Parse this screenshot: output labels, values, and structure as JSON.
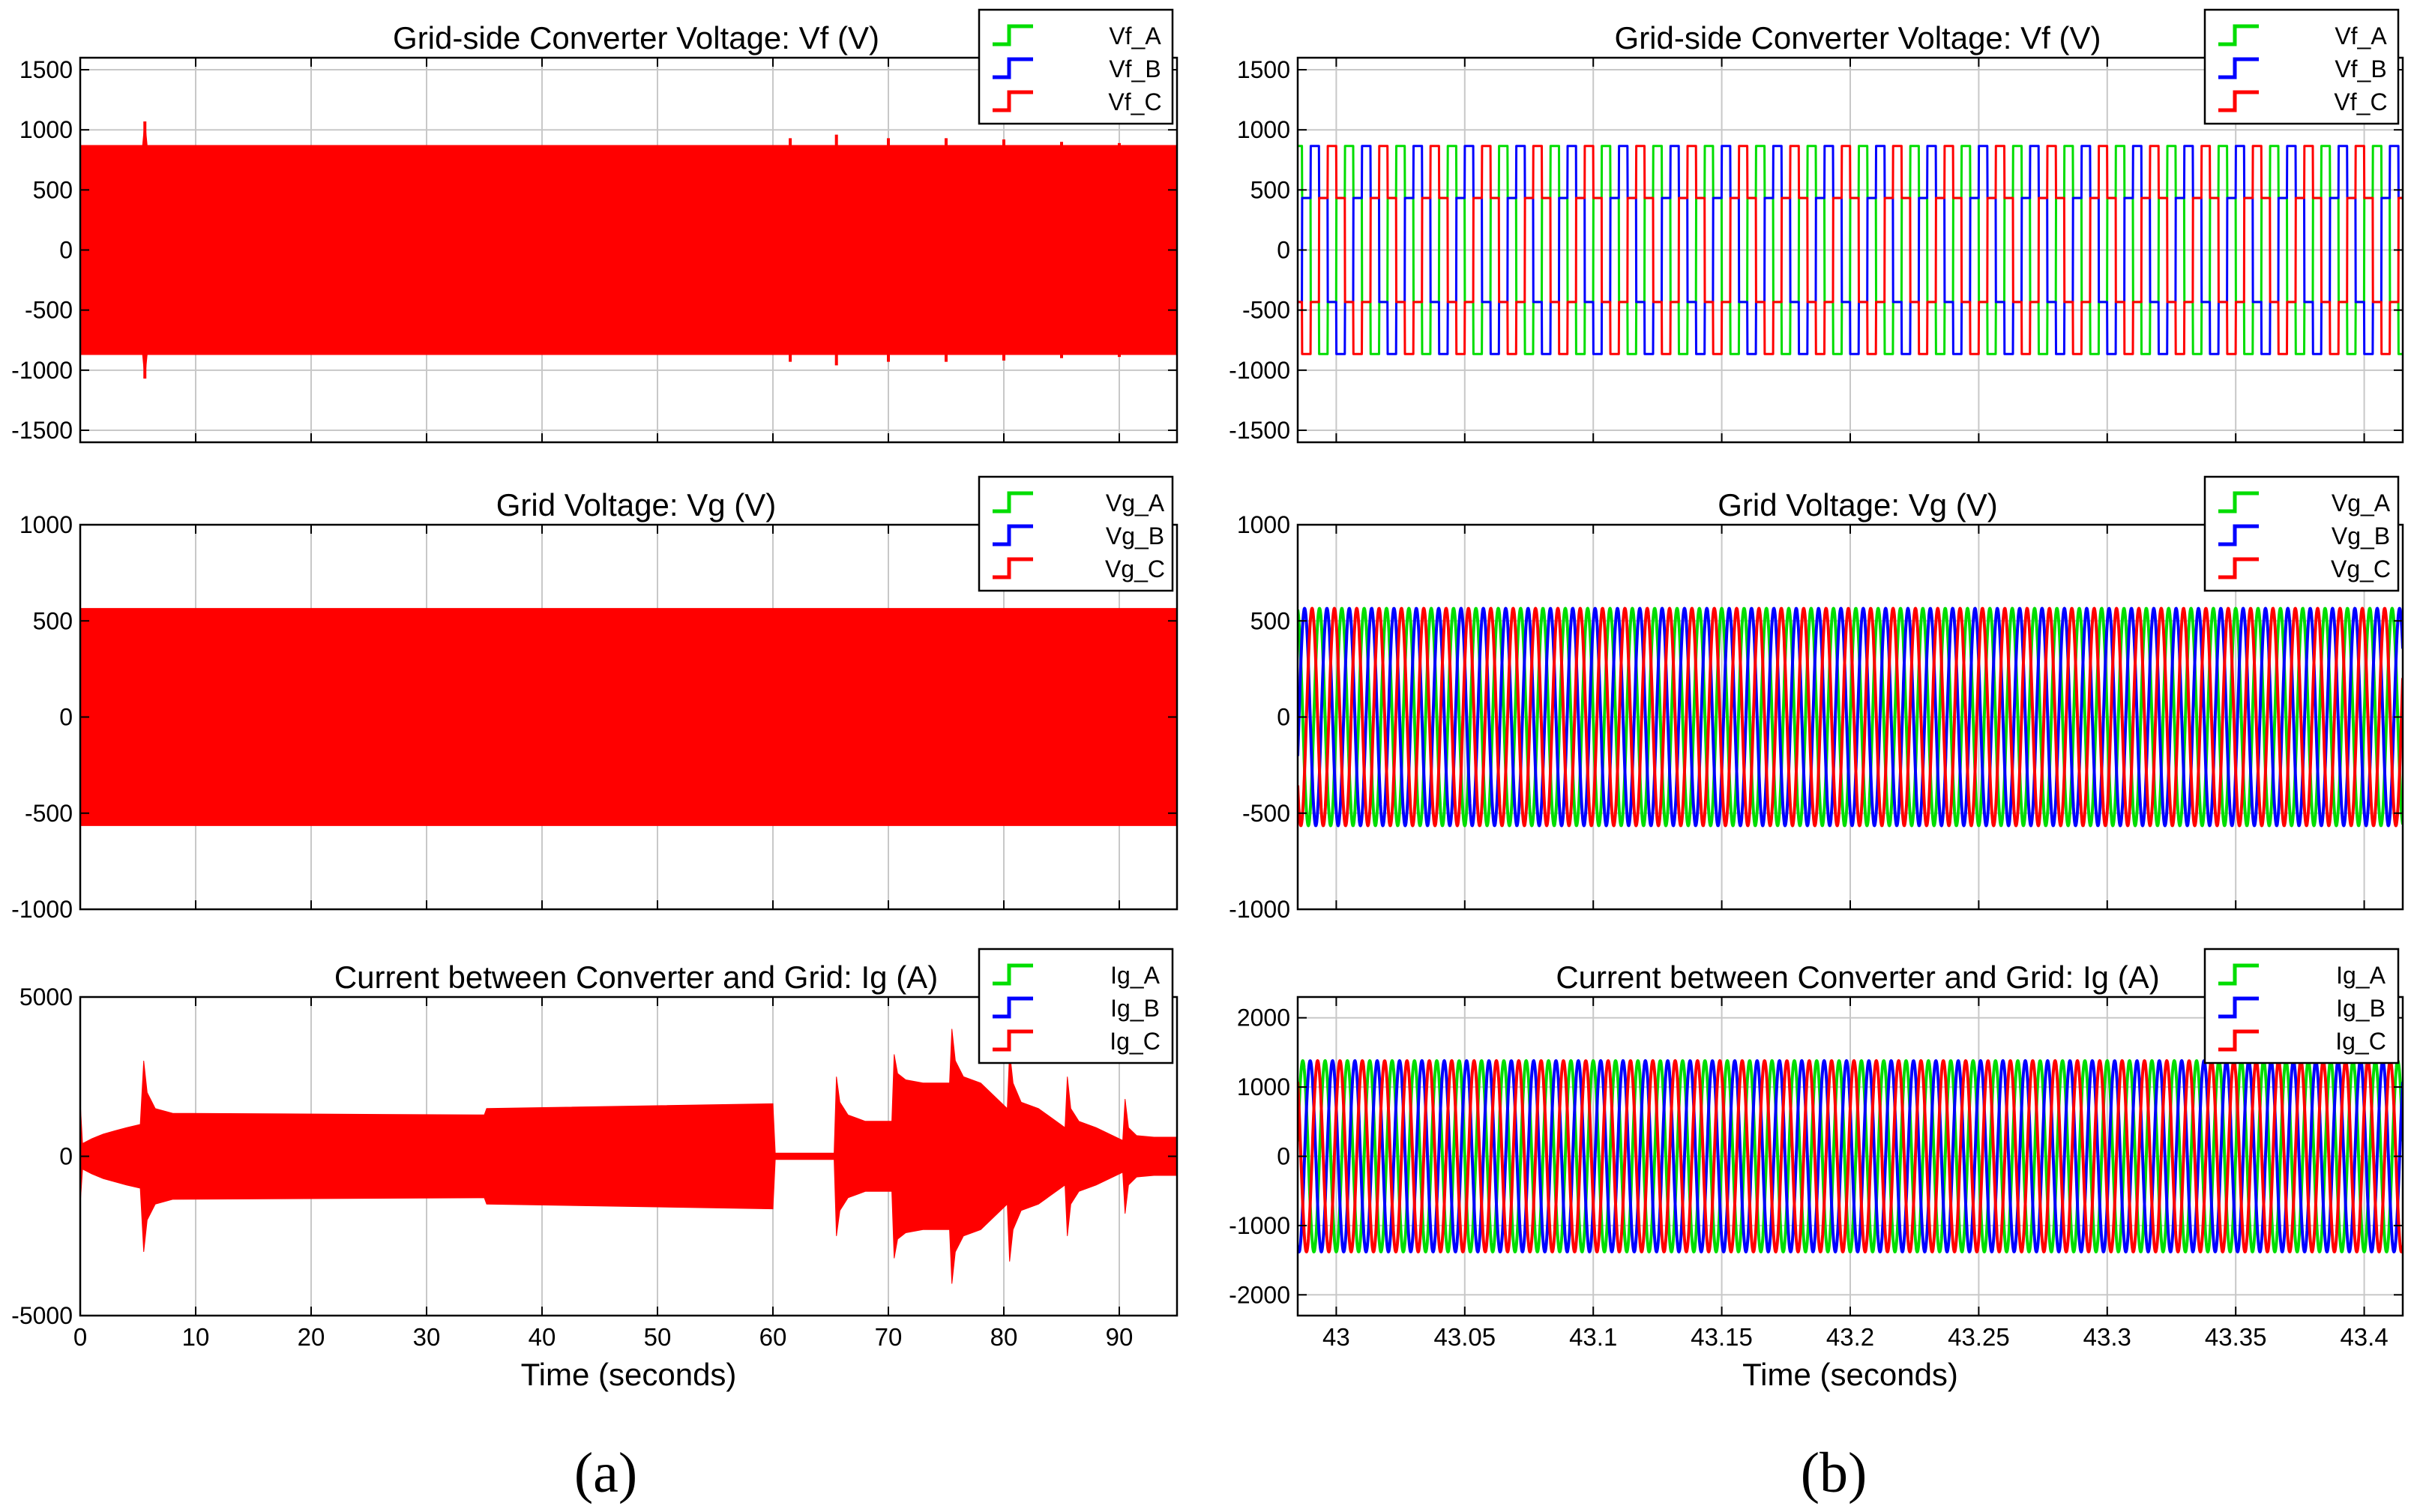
{
  "figure": {
    "panel_labels": [
      "(a)",
      "(b)"
    ],
    "colors": {
      "phase_A": "#00dd00",
      "phase_B": "#0000ff",
      "phase_C": "#ff0000",
      "grid": "#c8c8c8"
    }
  },
  "chart_data": [
    {
      "id": "a1",
      "type": "line",
      "panel": "(a)",
      "row": 0,
      "title": "Grid-side Converter Voltage: Vf (V)",
      "xlabel": "",
      "ylabel": "",
      "xlim": [
        0,
        95
      ],
      "ylim": [
        -1600,
        1600
      ],
      "xticks": [
        0,
        10,
        20,
        30,
        40,
        50,
        60,
        70,
        80,
        90
      ],
      "xtick_labels": [],
      "yticks": [
        -1500,
        -1000,
        -500,
        0,
        500,
        1000,
        1500
      ],
      "ytick_labels": [
        "-1500",
        "-1000",
        "-500",
        "0",
        "500",
        "1000",
        "1500"
      ],
      "legend": [
        "Vf_A",
        "Vf_B",
        "Vf_C"
      ],
      "legend_position": "top-right",
      "signal": "envelope",
      "envelope": {
        "t": [
          0,
          5.4,
          5.6,
          5.8,
          95
        ],
        "upper": [
          870,
          870,
          1070,
          870,
          870
        ],
        "lower": [
          -870,
          -870,
          -1070,
          -870,
          -870
        ]
      },
      "spikes": [
        [
          5.6,
          1070
        ],
        [
          61.5,
          930
        ],
        [
          65.5,
          960
        ],
        [
          70,
          930
        ],
        [
          75,
          930
        ],
        [
          80,
          920
        ],
        [
          85,
          900
        ],
        [
          90,
          890
        ]
      ]
    },
    {
      "id": "a2",
      "type": "line",
      "panel": "(a)",
      "row": 1,
      "title": "Grid Voltage: Vg (V)",
      "xlabel": "",
      "ylabel": "",
      "xlim": [
        0,
        95
      ],
      "ylim": [
        -1000,
        1000
      ],
      "xticks": [
        0,
        10,
        20,
        30,
        40,
        50,
        60,
        70,
        80,
        90
      ],
      "xtick_labels": [],
      "yticks": [
        -1000,
        -500,
        0,
        500,
        1000
      ],
      "ytick_labels": [
        "-1000",
        "-500",
        "0",
        "500",
        "1000"
      ],
      "legend": [
        "Vg_A",
        "Vg_B",
        "Vg_C"
      ],
      "legend_position": "top-right",
      "signal": "envelope",
      "envelope": {
        "t": [
          0,
          95
        ],
        "upper": [
          565,
          565
        ],
        "lower": [
          -565,
          -565
        ]
      },
      "spikes": []
    },
    {
      "id": "a3",
      "type": "line",
      "panel": "(a)",
      "row": 2,
      "title": "Current between Converter and Grid: Ig (A)",
      "xlabel": "Time (seconds)",
      "ylabel": "",
      "xlim": [
        0,
        95
      ],
      "ylim": [
        -5000,
        5000
      ],
      "xticks": [
        0,
        10,
        20,
        30,
        40,
        50,
        60,
        70,
        80,
        90
      ],
      "xtick_labels": [
        "0",
        "10",
        "20",
        "30",
        "40",
        "50",
        "60",
        "70",
        "80",
        "90"
      ],
      "yticks": [
        -5000,
        0,
        5000
      ],
      "ytick_labels": [
        "-5000",
        "0",
        "5000"
      ],
      "legend": [
        "Ig_A",
        "Ig_B",
        "Ig_C"
      ],
      "legend_position": "top-right",
      "signal": "envelope",
      "envelope": {
        "t": [
          0,
          0.2,
          1,
          2,
          3,
          4,
          5.2,
          5.5,
          5.8,
          6.5,
          8,
          35,
          35.2,
          60,
          60.2,
          65.3,
          65.5,
          65.8,
          66.5,
          68,
          70.3,
          70.5,
          70.8,
          71.5,
          73,
          75.3,
          75.5,
          75.8,
          76.5,
          78,
          80.3,
          80.5,
          80.8,
          81.5,
          83,
          85.3,
          85.5,
          85.8,
          86.5,
          88,
          90.3,
          90.5,
          90.8,
          91.5,
          93,
          95
        ],
        "upper": [
          1700,
          400,
          550,
          700,
          800,
          900,
          1000,
          3000,
          2000,
          1500,
          1350,
          1300,
          1500,
          1650,
          100,
          100,
          2500,
          1700,
          1300,
          1100,
          1100,
          3200,
          2600,
          2400,
          2300,
          2300,
          4000,
          3000,
          2500,
          2300,
          1500,
          3300,
          2300,
          1700,
          1500,
          900,
          2500,
          1500,
          1100,
          900,
          500,
          1800,
          900,
          650,
          600,
          600
        ],
        "lower": [
          -1500,
          -400,
          -550,
          -700,
          -800,
          -900,
          -1000,
          -3000,
          -2000,
          -1500,
          -1350,
          -1300,
          -1500,
          -1650,
          -100,
          -100,
          -2500,
          -1700,
          -1300,
          -1100,
          -1100,
          -3200,
          -2600,
          -2400,
          -2300,
          -2300,
          -4000,
          -3000,
          -2500,
          -2300,
          -1500,
          -3300,
          -2300,
          -1700,
          -1500,
          -900,
          -2500,
          -1500,
          -1100,
          -900,
          -500,
          -1800,
          -900,
          -650,
          -600,
          -600
        ]
      },
      "spikes": []
    },
    {
      "id": "b1",
      "type": "line",
      "panel": "(b)",
      "row": 0,
      "title": "Grid-side Converter Voltage: Vf (V)",
      "xlabel": "",
      "ylabel": "",
      "xlim": [
        42.985,
        43.415
      ],
      "ylim": [
        -1600,
        1600
      ],
      "xticks": [
        43,
        43.05,
        43.1,
        43.15,
        43.2,
        43.25,
        43.3,
        43.35,
        43.4
      ],
      "xtick_labels": [],
      "yticks": [
        -1500,
        -1000,
        -500,
        0,
        500,
        1000,
        1500
      ],
      "ytick_labels": [
        "-1500",
        "-1000",
        "-500",
        "0",
        "500",
        "1000",
        "1500"
      ],
      "legend": [
        "Vf_A",
        "Vf_B",
        "Vf_C"
      ],
      "legend_position": "top-right",
      "signal": "six-step",
      "frequency_hz": 50,
      "level_high": 865,
      "level_mid": 433,
      "series": [
        {
          "name": "Vf_A",
          "phase_deg": 0
        },
        {
          "name": "Vf_B",
          "phase_deg": -120
        },
        {
          "name": "Vf_C",
          "phase_deg": 120
        }
      ]
    },
    {
      "id": "b2",
      "type": "line",
      "panel": "(b)",
      "row": 1,
      "title": "Grid Voltage: Vg (V)",
      "xlabel": "",
      "ylabel": "",
      "xlim": [
        42.985,
        43.415
      ],
      "ylim": [
        -1000,
        1000
      ],
      "xticks": [
        43,
        43.05,
        43.1,
        43.15,
        43.2,
        43.25,
        43.3,
        43.35,
        43.4
      ],
      "xtick_labels": [],
      "yticks": [
        -1000,
        -500,
        0,
        500,
        1000
      ],
      "ytick_labels": [
        "-1000",
        "-500",
        "0",
        "500",
        "1000"
      ],
      "legend": [
        "Vg_A",
        "Vg_B",
        "Vg_C"
      ],
      "legend_position": "top-right",
      "signal": "sine",
      "frequency_hz": 115,
      "amplitude": 565,
      "series": [
        {
          "name": "Vg_A",
          "phase_deg": 0
        },
        {
          "name": "Vg_B",
          "phase_deg": -120
        },
        {
          "name": "Vg_C",
          "phase_deg": 120
        }
      ]
    },
    {
      "id": "b3",
      "type": "line",
      "panel": "(b)",
      "row": 2,
      "title": "Current between Converter and Grid: Ig (A)",
      "xlabel": "Time (seconds)",
      "ylabel": "",
      "xlim": [
        42.985,
        43.415
      ],
      "ylim": [
        -2300,
        2300
      ],
      "xticks": [
        43,
        43.05,
        43.1,
        43.15,
        43.2,
        43.25,
        43.3,
        43.35,
        43.4
      ],
      "xtick_labels": [
        "43",
        "43.05",
        "43.1",
        "43.15",
        "43.2",
        "43.25",
        "43.3",
        "43.35",
        "43.4"
      ],
      "yticks": [
        -2000,
        -1000,
        0,
        1000,
        2000
      ],
      "ytick_labels": [
        "-2000",
        "-1000",
        "0",
        "1000",
        "2000"
      ],
      "legend": [
        "Ig_A",
        "Ig_B",
        "Ig_C"
      ],
      "legend_position": "top-right",
      "signal": "sine",
      "frequency_hz": 115,
      "amplitude": 1380,
      "series": [
        {
          "name": "Ig_A",
          "phase_deg": -90
        },
        {
          "name": "Ig_B",
          "phase_deg": 150
        },
        {
          "name": "Ig_C",
          "phase_deg": 30
        }
      ]
    }
  ]
}
